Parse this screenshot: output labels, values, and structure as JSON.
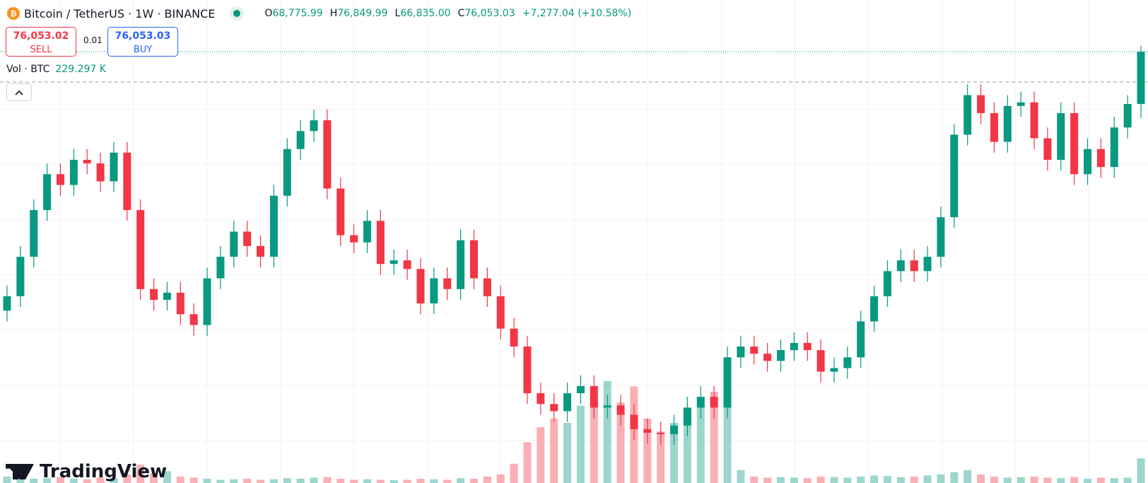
{
  "header": {
    "symbol": "Bitcoin / TetherUS · 1W · BINANCE",
    "open_label": "O",
    "open": "68,775.99",
    "high_label": "H",
    "high": "76,849.99",
    "low_label": "L",
    "low": "66,835.00",
    "close_label": "C",
    "close": "76,053.03",
    "change": "+7,277.04 (+10.58%)",
    "sell_price": "76,053.02",
    "sell": "SELL",
    "quantity": "0.01",
    "buy_price": "76,053.03",
    "buy": "BUY",
    "volume_title": "Vol · BTC",
    "volume_value": "229.297 K",
    "brand": "TradingView"
  },
  "chart_data": {
    "type": "candlestick",
    "up_color": "#089981",
    "down_color": "#f23645",
    "ylim": [
      16000,
      83250
    ],
    "volume_lim": [
      0,
      4500000
    ],
    "open": [
      40000,
      42000,
      47500,
      54000,
      59000,
      57500,
      61000,
      60500,
      58000,
      62000,
      54000,
      43000,
      41500,
      42500,
      39500,
      38000,
      44500,
      47500,
      51000,
      49000,
      47500,
      56000,
      62500,
      65000,
      66500,
      57000,
      50500,
      49500,
      52500,
      46500,
      47000,
      45800,
      41000,
      44500,
      43000,
      49800,
      44500,
      42000,
      37500,
      35000,
      28500,
      27000,
      26000,
      28500,
      29500,
      26500,
      26800,
      25500,
      23500,
      23000,
      22800,
      24000,
      26500,
      28000,
      26500,
      33500,
      35000,
      34000,
      33000,
      34500,
      35500,
      34500,
      31500,
      32000,
      33500,
      38500,
      42000,
      45500,
      47000,
      45500,
      47500,
      53000,
      64500,
      70000,
      67500,
      63500,
      68500,
      69000,
      64000,
      61000,
      67500,
      59000,
      62500,
      60000,
      65500,
      68775.99
    ],
    "high": [
      43500,
      49000,
      55500,
      60500,
      60500,
      62500,
      62500,
      62000,
      63500,
      63500,
      55500,
      44500,
      44000,
      44000,
      41000,
      46000,
      49000,
      52500,
      52500,
      50500,
      57500,
      64000,
      66500,
      68000,
      68000,
      58500,
      52000,
      54000,
      54000,
      48500,
      48500,
      47300,
      46000,
      46000,
      51300,
      51300,
      46000,
      43500,
      39000,
      36500,
      30000,
      28500,
      30000,
      31000,
      31000,
      28300,
      28300,
      27000,
      25000,
      24500,
      25500,
      28000,
      29500,
      29500,
      35000,
      36500,
      36500,
      35500,
      36000,
      37000,
      37000,
      36000,
      33500,
      35000,
      40000,
      43500,
      47000,
      48500,
      48500,
      49000,
      54500,
      66000,
      71500,
      71500,
      69000,
      70000,
      70500,
      70500,
      65500,
      69000,
      69000,
      64000,
      64000,
      67000,
      70000,
      76849.99
    ],
    "low": [
      38500,
      40500,
      46000,
      52500,
      56000,
      56000,
      59000,
      56500,
      56500,
      52500,
      41500,
      40000,
      40000,
      38000,
      36500,
      36500,
      43000,
      46000,
      47500,
      46000,
      46000,
      54500,
      61000,
      63500,
      55500,
      49000,
      48000,
      48000,
      45000,
      45000,
      44300,
      39500,
      39500,
      41500,
      41500,
      43000,
      40500,
      36000,
      33500,
      27000,
      25500,
      24500,
      24500,
      27000,
      25000,
      25000,
      24000,
      22000,
      21500,
      21300,
      21300,
      22500,
      25000,
      25000,
      25000,
      32000,
      32500,
      31500,
      31500,
      33000,
      33000,
      30000,
      30000,
      30500,
      32000,
      37000,
      40500,
      44000,
      44000,
      44000,
      46000,
      51500,
      63000,
      66000,
      62000,
      62000,
      67000,
      62500,
      59500,
      59500,
      57500,
      57500,
      58500,
      58500,
      64000,
      66835
    ],
    "close": [
      42000,
      47500,
      54000,
      59000,
      57500,
      61000,
      60500,
      58000,
      62000,
      54000,
      43000,
      41500,
      42500,
      39500,
      38000,
      44500,
      47500,
      51000,
      49000,
      47500,
      56000,
      62500,
      65000,
      66500,
      57000,
      50500,
      49500,
      52500,
      46500,
      47000,
      45800,
      41000,
      44500,
      43000,
      49800,
      44500,
      42000,
      37500,
      35000,
      28500,
      27000,
      26000,
      28500,
      29500,
      26500,
      26800,
      25500,
      23500,
      23000,
      22800,
      24000,
      26500,
      28000,
      26500,
      33500,
      35000,
      34000,
      33000,
      34500,
      35500,
      34500,
      31500,
      32000,
      33500,
      38500,
      42000,
      45500,
      47000,
      45500,
      47500,
      53000,
      64500,
      70000,
      67500,
      63500,
      68500,
      69000,
      64000,
      61000,
      67500,
      59000,
      62500,
      60000,
      65500,
      68775.99,
      76053.03
    ],
    "volume": [
      60000,
      50000,
      40000,
      45000,
      55000,
      40000,
      35000,
      50000,
      45000,
      80000,
      170000,
      90000,
      110000,
      60000,
      50000,
      40000,
      30000,
      35000,
      40000,
      30000,
      35000,
      45000,
      40000,
      50000,
      55000,
      40000,
      30000,
      35000,
      30000,
      25000,
      30000,
      40000,
      35000,
      30000,
      45000,
      40000,
      60000,
      80000,
      180000,
      380000,
      520000,
      600000,
      560000,
      720000,
      800000,
      950000,
      750000,
      900000,
      600000,
      480000,
      560000,
      700000,
      720000,
      850000,
      960000,
      120000,
      60000,
      50000,
      55000,
      50000,
      45000,
      60000,
      55000,
      50000,
      60000,
      70000,
      65000,
      55000,
      60000,
      70000,
      80000,
      100000,
      120000,
      80000,
      60000,
      50000,
      55000,
      60000,
      50000,
      45000,
      55000,
      40000,
      50000,
      45000,
      50000,
      229297
    ]
  }
}
